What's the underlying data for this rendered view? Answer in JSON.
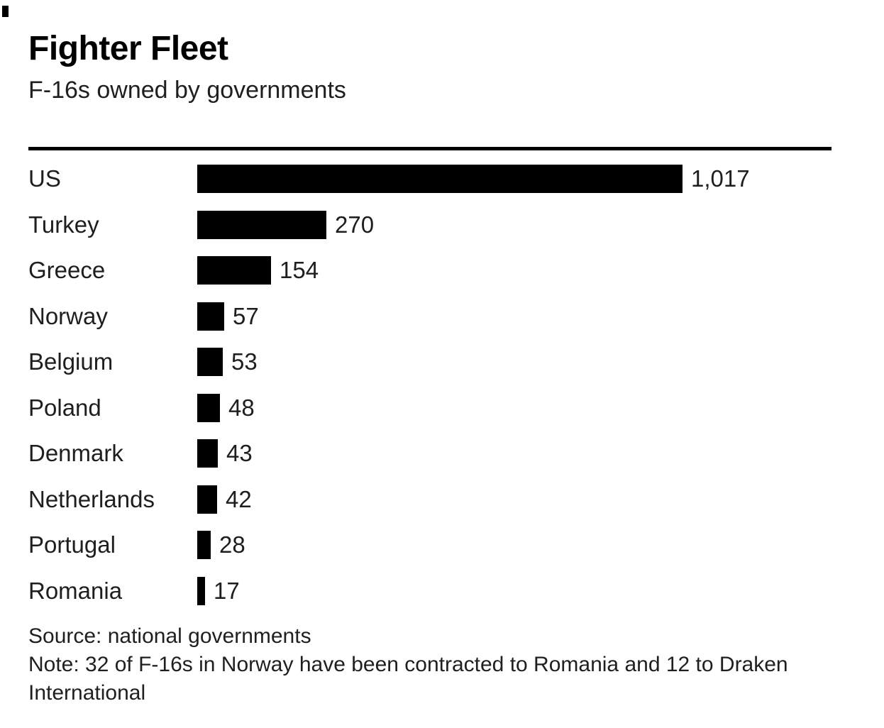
{
  "chart": {
    "title": "Fighter Fleet",
    "subtitle": "F-16s owned by governments",
    "source": "Source: national governments",
    "note": "Note: 32 of F-16s in Norway have been contracted to Romania and 12 to Draken International"
  },
  "chart_data": {
    "type": "bar",
    "orientation": "horizontal",
    "title": "Fighter Fleet",
    "subtitle": "F-16s owned by governments",
    "categories": [
      "US",
      "Turkey",
      "Greece",
      "Norway",
      "Belgium",
      "Poland",
      "Denmark",
      "Netherlands",
      "Portugal",
      "Romania"
    ],
    "values": [
      1017,
      270,
      154,
      57,
      53,
      48,
      43,
      42,
      28,
      17
    ],
    "value_labels": [
      "1,017",
      "270",
      "154",
      "57",
      "53",
      "48",
      "43",
      "42",
      "28",
      "17"
    ],
    "xlim": [
      0,
      1017
    ],
    "bar_color": "#000000",
    "grid": false,
    "legend": false,
    "source": "Source: national governments",
    "note": "Note: 32 of F-16s in Norway have been contracted to Romania and 12 to Draken International"
  }
}
